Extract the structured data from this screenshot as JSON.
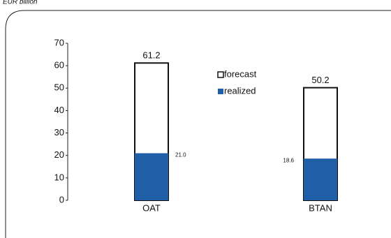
{
  "chart_data": {
    "type": "bar",
    "ylabel": "EUR billion",
    "categories": [
      "OAT",
      "BTAN"
    ],
    "series": [
      {
        "name": "forecast",
        "color": "#ffffff",
        "edge": "#111111",
        "values": [
          61.2,
          50.2
        ]
      },
      {
        "name": "realized",
        "color": "#1f5fa8",
        "values": [
          21.0,
          18.6
        ],
        "value_labels": [
          "21.0",
          "18.6"
        ]
      }
    ],
    "ylim": [
      0,
      70
    ],
    "yticks": [
      0,
      10,
      20,
      30,
      40,
      50,
      60,
      70
    ],
    "grid": false
  }
}
